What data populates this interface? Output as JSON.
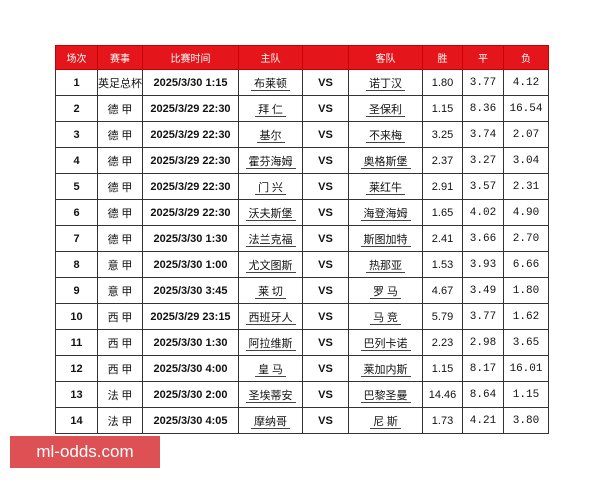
{
  "table": {
    "header": [
      "场次",
      "赛事",
      "比赛时间",
      "主队",
      "",
      "客队",
      "胜",
      "平",
      "负"
    ],
    "rows": [
      [
        "1",
        "英足总杯",
        "2025/3/30 1:15",
        "布莱顿",
        "VS",
        "诺丁汉",
        "1.80",
        "3.77",
        "4.12"
      ],
      [
        "2",
        "德 甲",
        "2025/3/29 22:30",
        "拜 仁",
        "VS",
        "圣保利",
        "1.15",
        "8.36",
        "16.54"
      ],
      [
        "3",
        "德 甲",
        "2025/3/29 22:30",
        "基尔",
        "VS",
        "不来梅",
        "3.25",
        "3.74",
        "2.07"
      ],
      [
        "4",
        "德 甲",
        "2025/3/29 22:30",
        "霍芬海姆",
        "VS",
        "奥格斯堡",
        "2.37",
        "3.27",
        "3.04"
      ],
      [
        "5",
        "德 甲",
        "2025/3/29 22:30",
        "门 兴",
        "VS",
        "莱红牛",
        "2.91",
        "3.57",
        "2.31"
      ],
      [
        "6",
        "德 甲",
        "2025/3/29 22:30",
        "沃夫斯堡",
        "VS",
        "海登海姆",
        "1.65",
        "4.02",
        "4.90"
      ],
      [
        "7",
        "德 甲",
        "2025/3/30 1:30",
        "法兰克福",
        "VS",
        "斯图加特",
        "2.41",
        "3.66",
        "2.70"
      ],
      [
        "8",
        "意 甲",
        "2025/3/30 1:00",
        "尤文图斯",
        "VS",
        "热那亚",
        "1.53",
        "3.93",
        "6.66"
      ],
      [
        "9",
        "意 甲",
        "2025/3/30 3:45",
        "莱 切",
        "VS",
        "罗 马",
        "4.67",
        "3.49",
        "1.80"
      ],
      [
        "10",
        "西 甲",
        "2025/3/29 23:15",
        "西班牙人",
        "VS",
        "马 竞",
        "5.79",
        "3.77",
        "1.62"
      ],
      [
        "11",
        "西 甲",
        "2025/3/30 1:30",
        "阿拉维斯",
        "VS",
        "巴列卡诺",
        "2.23",
        "2.98",
        "3.65"
      ],
      [
        "12",
        "西 甲",
        "2025/3/30 4:00",
        "皇 马",
        "VS",
        "莱加内斯",
        "1.15",
        "8.17",
        "16.01"
      ],
      [
        "13",
        "法 甲",
        "2025/3/30 2:00",
        "圣埃蒂安",
        "VS",
        "巴黎圣曼",
        "14.46",
        "8.64",
        "1.15"
      ],
      [
        "14",
        "法 甲",
        "2025/3/30 4:05",
        "摩纳哥",
        "VS",
        "尼 斯",
        "1.73",
        "4.21",
        "3.80"
      ]
    ]
  },
  "watermark": "ml-odds.com"
}
